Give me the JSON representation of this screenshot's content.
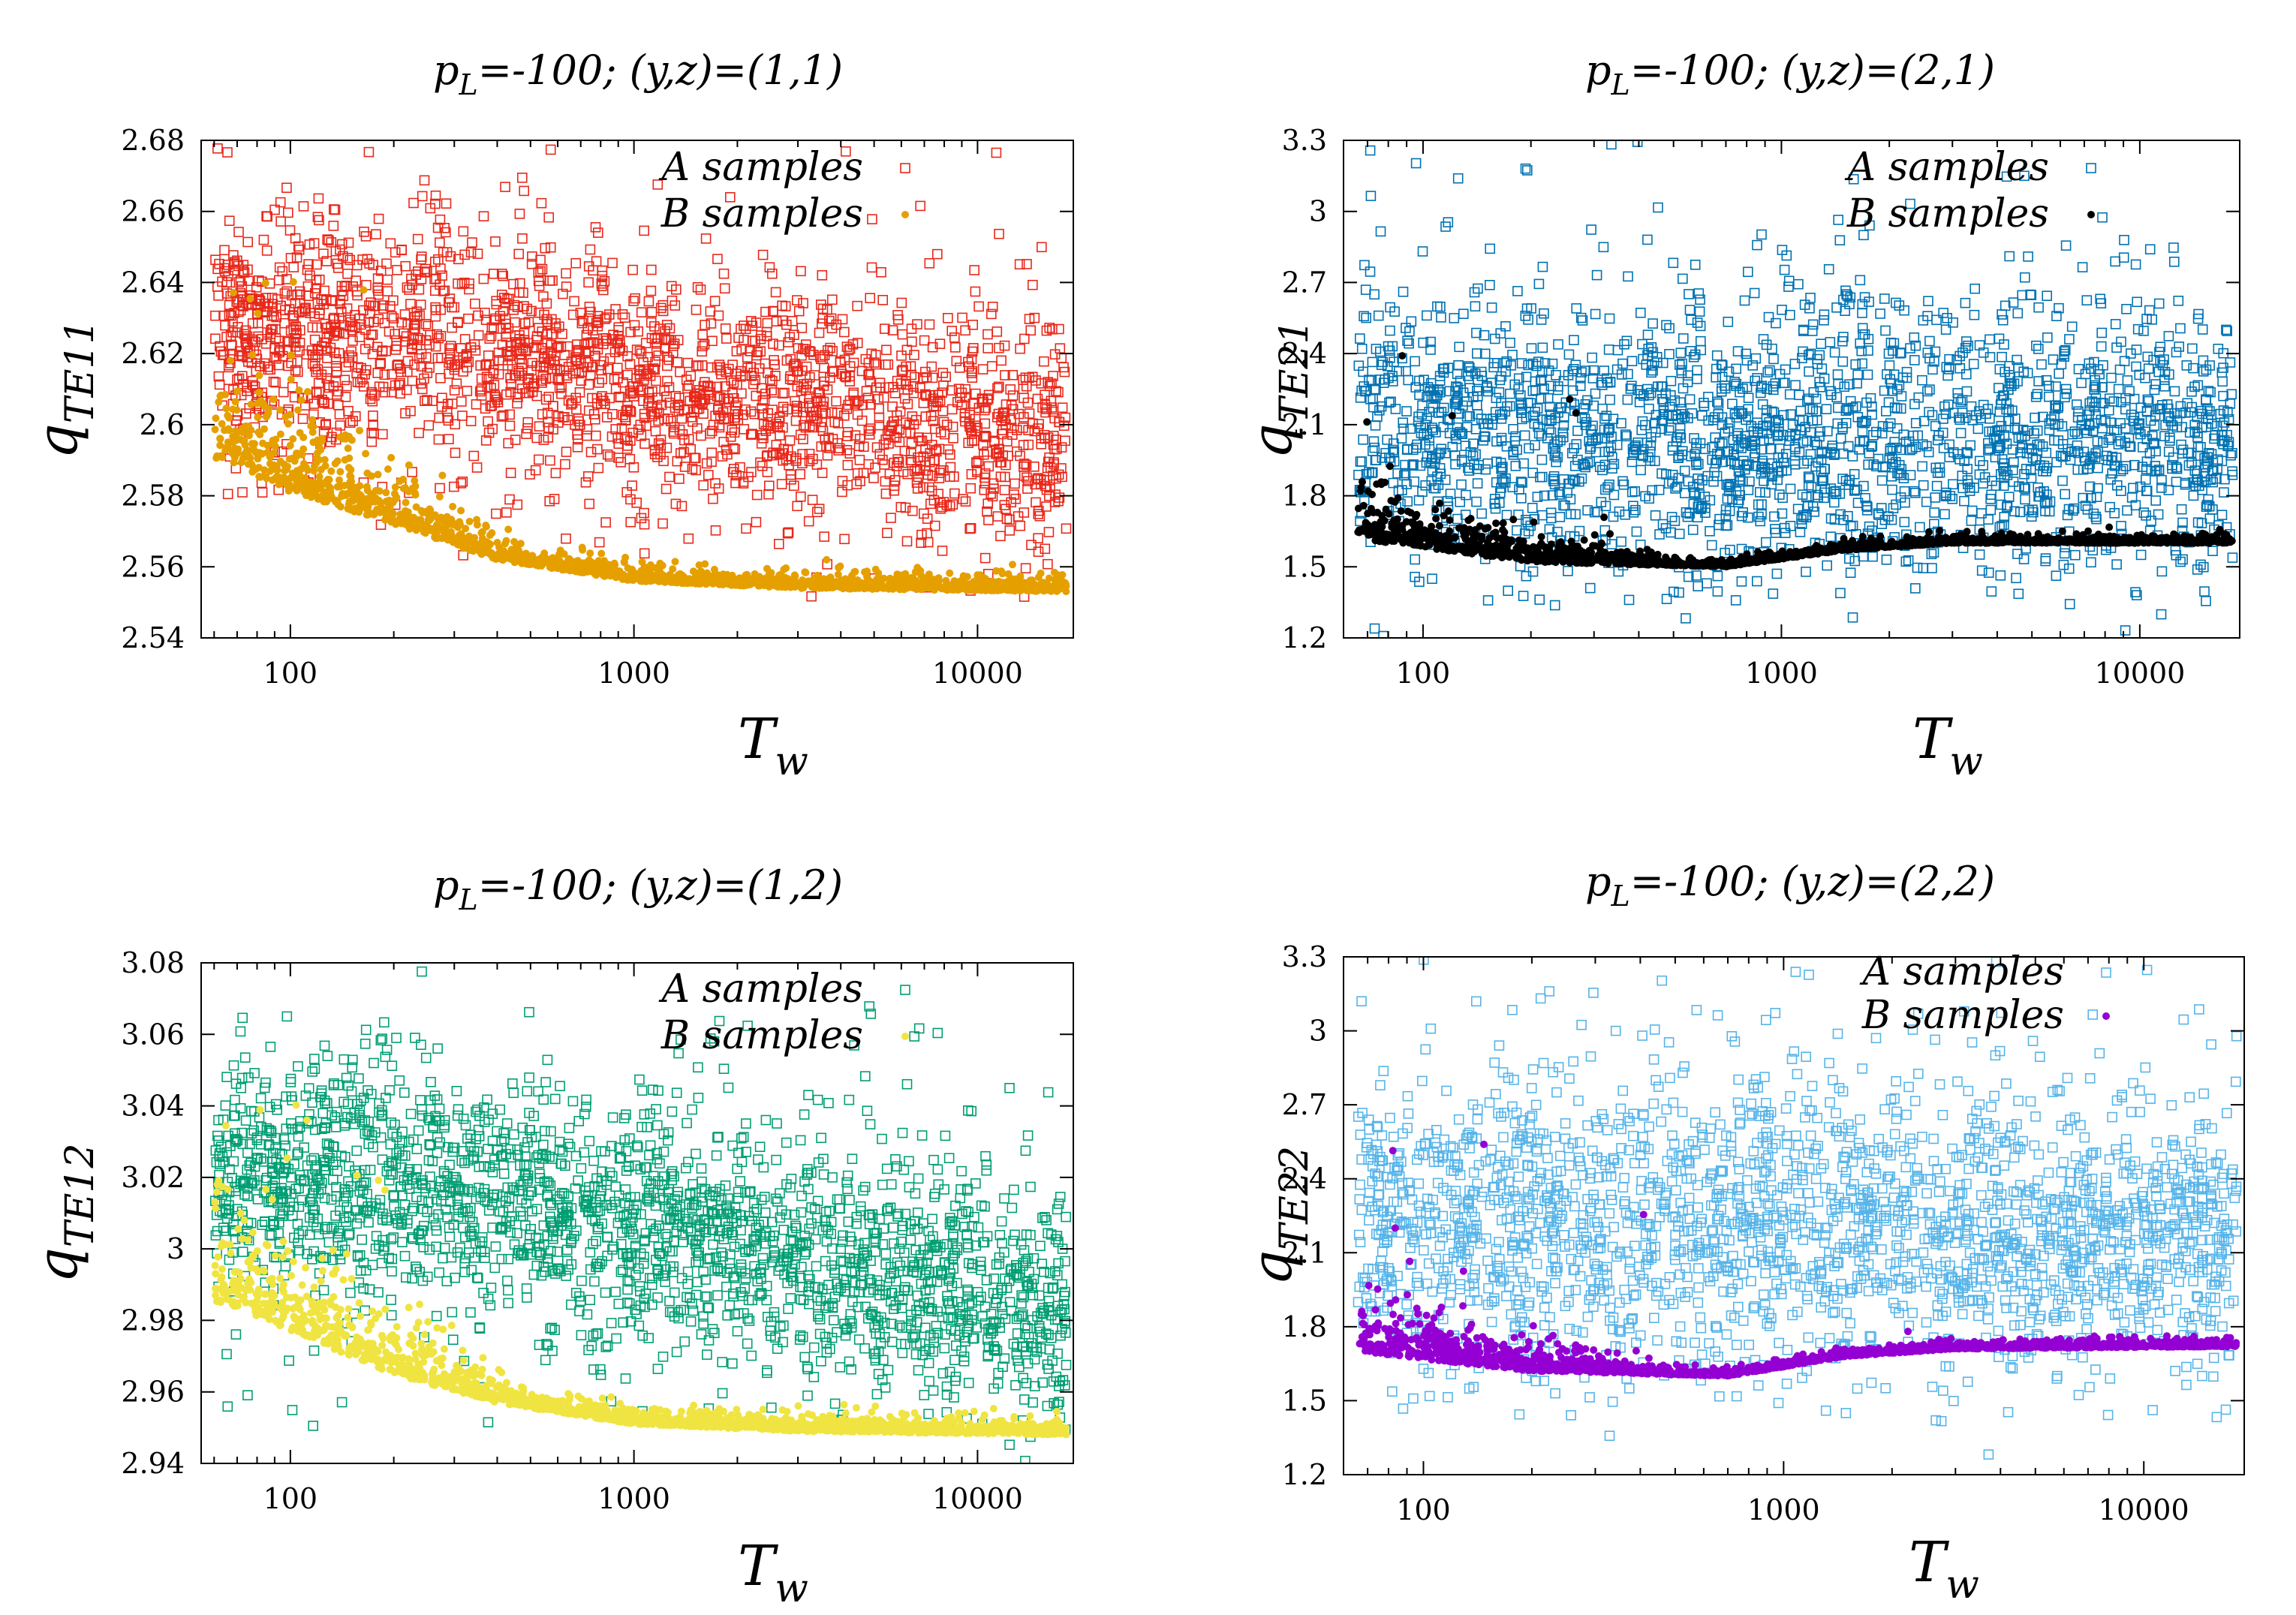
{
  "figure": {
    "description_colors": {
      "axis": "#000000",
      "background": "#ffffff"
    }
  },
  "chart_data": [
    {
      "id": "p11",
      "type": "scatter",
      "title": "p_L=-100; (y,z)=(1,1)",
      "title_parts": {
        "p": "p",
        "sub": "L",
        "rest": "=-100; (y,z)=(1,1)"
      },
      "xlabel": {
        "main": "T",
        "sub": "w"
      },
      "ylabel": {
        "main": "q",
        "sub": "TE11"
      },
      "xscale": "log",
      "xlim": [
        55,
        19000
      ],
      "ylim": [
        2.54,
        2.68
      ],
      "xticks": [
        {
          "v": 100,
          "label": "100"
        },
        {
          "v": 1000,
          "label": "1000"
        },
        {
          "v": 10000,
          "label": "10000"
        }
      ],
      "yticks": [
        {
          "v": 2.54,
          "label": "2.54"
        },
        {
          "v": 2.56,
          "label": "2.56"
        },
        {
          "v": 2.58,
          "label": "2.58"
        },
        {
          "v": 2.6,
          "label": "2.6"
        },
        {
          "v": 2.62,
          "label": "2.62"
        },
        {
          "v": 2.64,
          "label": "2.64"
        },
        {
          "v": 2.66,
          "label": "2.66"
        },
        {
          "v": 2.68,
          "label": "2.68"
        }
      ],
      "legend": {
        "position": "top-right",
        "a_label": "A samples",
        "b_label": "B samples"
      },
      "series": [
        {
          "name": "A samples",
          "marker": "open-square",
          "color": "#e8281a",
          "trend": [
            [
              65,
              2.625
            ],
            [
              200,
              2.625
            ],
            [
              500,
              2.618
            ],
            [
              1000,
              2.612
            ],
            [
              3000,
              2.607
            ],
            [
              10000,
              2.6
            ],
            [
              18000,
              2.59
            ]
          ],
          "spread": 0.018,
          "outlier_max": 2.678,
          "outlier_min": 2.56
        },
        {
          "name": "B samples",
          "marker": "filled-dot",
          "color": "#e5a000",
          "trend": [
            [
              65,
              2.59
            ],
            [
              100,
              2.581
            ],
            [
              200,
              2.572
            ],
            [
              400,
              2.562
            ],
            [
              1000,
              2.556
            ],
            [
              3000,
              2.554
            ],
            [
              18000,
              2.553
            ]
          ],
          "spread": 0.004,
          "early_max": 2.647
        }
      ]
    },
    {
      "id": "p21",
      "type": "scatter",
      "title": "p_L=-100; (y,z)=(2,1)",
      "title_parts": {
        "p": "p",
        "sub": "L",
        "rest": "=-100; (y,z)=(2,1)"
      },
      "xlabel": {
        "main": "T",
        "sub": "w"
      },
      "ylabel": {
        "main": "q",
        "sub": "TE21"
      },
      "xscale": "log",
      "xlim": [
        60,
        19000
      ],
      "ylim": [
        1.2,
        3.3
      ],
      "xticks": [
        {
          "v": 100,
          "label": "100"
        },
        {
          "v": 1000,
          "label": "1000"
        },
        {
          "v": 10000,
          "label": "10000"
        }
      ],
      "yticks": [
        {
          "v": 1.2,
          "label": "1.2"
        },
        {
          "v": 1.5,
          "label": "1.5"
        },
        {
          "v": 1.8,
          "label": "1.8"
        },
        {
          "v": 2.1,
          "label": "2.1"
        },
        {
          "v": 2.4,
          "label": "2.4"
        },
        {
          "v": 2.7,
          "label": "2.7"
        },
        {
          "v": 3.0,
          "label": "3"
        },
        {
          "v": 3.3,
          "label": "3.3"
        }
      ],
      "legend": {
        "position": "top-right",
        "a_label": "A samples",
        "b_label": "B samples"
      },
      "series": [
        {
          "name": "A samples",
          "marker": "open-square",
          "color": "#0072b2",
          "trend": [
            [
              65,
              2.1
            ],
            [
              1000,
              2.05
            ],
            [
              18000,
              2.0
            ]
          ],
          "spread": 0.32,
          "outlier_max": 3.3,
          "outlier_min": 1.35
        },
        {
          "name": "B samples",
          "marker": "filled-dot",
          "color": "#000000",
          "trend": [
            [
              65,
              1.62
            ],
            [
              200,
              1.52
            ],
            [
              700,
              1.5
            ],
            [
              1500,
              1.57
            ],
            [
              3000,
              1.6
            ],
            [
              18000,
              1.6
            ]
          ],
          "spread": 0.03,
          "early_max": 2.51
        }
      ]
    },
    {
      "id": "p12",
      "type": "scatter",
      "title": "p_L=-100; (y,z)=(1,2)",
      "title_parts": {
        "p": "p",
        "sub": "L",
        "rest": "=-100; (y,z)=(1,2)"
      },
      "xlabel": {
        "main": "T",
        "sub": "w"
      },
      "ylabel": {
        "main": "q",
        "sub": "TE12"
      },
      "xscale": "log",
      "xlim": [
        55,
        19000
      ],
      "ylim": [
        2.94,
        3.08
      ],
      "xticks": [
        {
          "v": 100,
          "label": "100"
        },
        {
          "v": 1000,
          "label": "1000"
        },
        {
          "v": 10000,
          "label": "10000"
        }
      ],
      "yticks": [
        {
          "v": 2.94,
          "label": "2.94"
        },
        {
          "v": 2.96,
          "label": "2.96"
        },
        {
          "v": 2.98,
          "label": "2.98"
        },
        {
          "v": 3.0,
          "label": "3"
        },
        {
          "v": 3.02,
          "label": "3.02"
        },
        {
          "v": 3.04,
          "label": "3.04"
        },
        {
          "v": 3.06,
          "label": "3.06"
        },
        {
          "v": 3.08,
          "label": "3.08"
        }
      ],
      "legend": {
        "position": "top-right",
        "a_label": "A samples",
        "b_label": "B samples"
      },
      "series": [
        {
          "name": "A samples",
          "marker": "open-square",
          "color": "#009e73",
          "trend": [
            [
              65,
              3.018
            ],
            [
              200,
              3.02
            ],
            [
              500,
              3.012
            ],
            [
              1000,
              3.006
            ],
            [
              3000,
              2.998
            ],
            [
              10000,
              2.99
            ],
            [
              18000,
              2.98
            ]
          ],
          "spread": 0.018,
          "outlier_max": 3.072,
          "outlier_min": 2.947
        },
        {
          "name": "B samples",
          "marker": "filled-dot",
          "color": "#f0e442",
          "trend": [
            [
              65,
              2.985
            ],
            [
              100,
              2.977
            ],
            [
              200,
              2.965
            ],
            [
              400,
              2.957
            ],
            [
              1000,
              2.951
            ],
            [
              3000,
              2.949
            ],
            [
              18000,
              2.948
            ]
          ],
          "spread": 0.004,
          "early_max": 3.042
        }
      ]
    },
    {
      "id": "p22",
      "type": "scatter",
      "title": "p_L=-100; (y,z)=(2,2)",
      "title_parts": {
        "p": "p",
        "sub": "L",
        "rest": "=-100; (y,z)=(2,2)"
      },
      "xlabel": {
        "main": "T",
        "sub": "w"
      },
      "ylabel": {
        "main": "q",
        "sub": "TE22"
      },
      "xscale": "log",
      "xlim": [
        60,
        19000
      ],
      "ylim": [
        1.2,
        3.3
      ],
      "xticks": [
        {
          "v": 100,
          "label": "100"
        },
        {
          "v": 1000,
          "label": "1000"
        },
        {
          "v": 10000,
          "label": "10000"
        }
      ],
      "yticks": [
        {
          "v": 1.2,
          "label": "1.2"
        },
        {
          "v": 1.5,
          "label": "1.5"
        },
        {
          "v": 1.8,
          "label": "1.8"
        },
        {
          "v": 2.1,
          "label": "2.1"
        },
        {
          "v": 2.4,
          "label": "2.4"
        },
        {
          "v": 2.7,
          "label": "2.7"
        },
        {
          "v": 3.0,
          "label": "3"
        },
        {
          "v": 3.3,
          "label": "3.3"
        }
      ],
      "legend": {
        "position": "top-right",
        "a_label": "A samples",
        "b_label": "B samples"
      },
      "series": [
        {
          "name": "A samples",
          "marker": "open-square",
          "color": "#56b4e9",
          "trend": [
            [
              65,
              2.2
            ],
            [
              1000,
              2.22
            ],
            [
              18000,
              2.2
            ]
          ],
          "spread": 0.32,
          "outlier_max": 3.3,
          "outlier_min": 1.5
        },
        {
          "name": "B samples",
          "marker": "filled-dot",
          "color": "#9400d3",
          "trend": [
            [
              65,
              1.7
            ],
            [
              200,
              1.62
            ],
            [
              700,
              1.6
            ],
            [
              1500,
              1.68
            ],
            [
              3000,
              1.71
            ],
            [
              18000,
              1.72
            ]
          ],
          "spread": 0.03,
          "early_max": 2.6
        }
      ]
    }
  ]
}
